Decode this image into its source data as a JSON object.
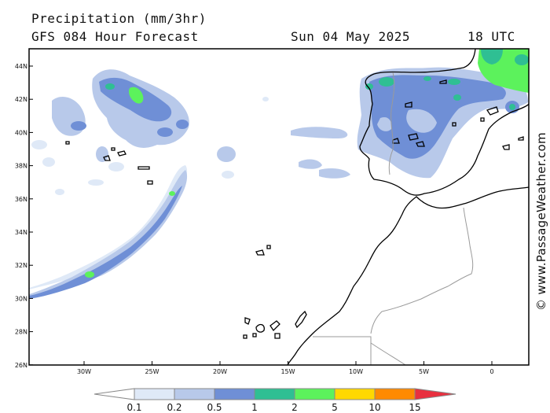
{
  "header": {
    "title": "Precipitation (mm/3hr)",
    "subtitle": "GFS 084 Hour Forecast",
    "valid_date": "Sun 04 May 2025",
    "valid_time": "18 UTC"
  },
  "credit": "© www.PassageWeather.com",
  "axes": {
    "lat_labels": [
      "44N",
      "42N",
      "40N",
      "38N",
      "36N",
      "34N",
      "32N",
      "30N",
      "28N",
      "26N"
    ],
    "lon_labels": [
      "30W",
      "25W",
      "20W",
      "15W",
      "10W",
      "5W",
      "0"
    ]
  },
  "legend": {
    "labels": [
      "0.1",
      "0.2",
      "0.5",
      "1",
      "2",
      "5",
      "10",
      "15"
    ],
    "colors": [
      "#ffffff",
      "#dfe9f7",
      "#b8c9ea",
      "#6f8fd6",
      "#2fbf93",
      "#5cf25c",
      "#ffd800",
      "#ff8a00",
      "#e8303f"
    ]
  },
  "palette": {
    "land_outline": "#000000",
    "border": "#9a9a9a",
    "light_blue": "#dfe9f7",
    "mid_blue": "#b8c9ea",
    "blue": "#6f8fd6",
    "green": "#5cf25c",
    "teal": "#2fbf93"
  }
}
